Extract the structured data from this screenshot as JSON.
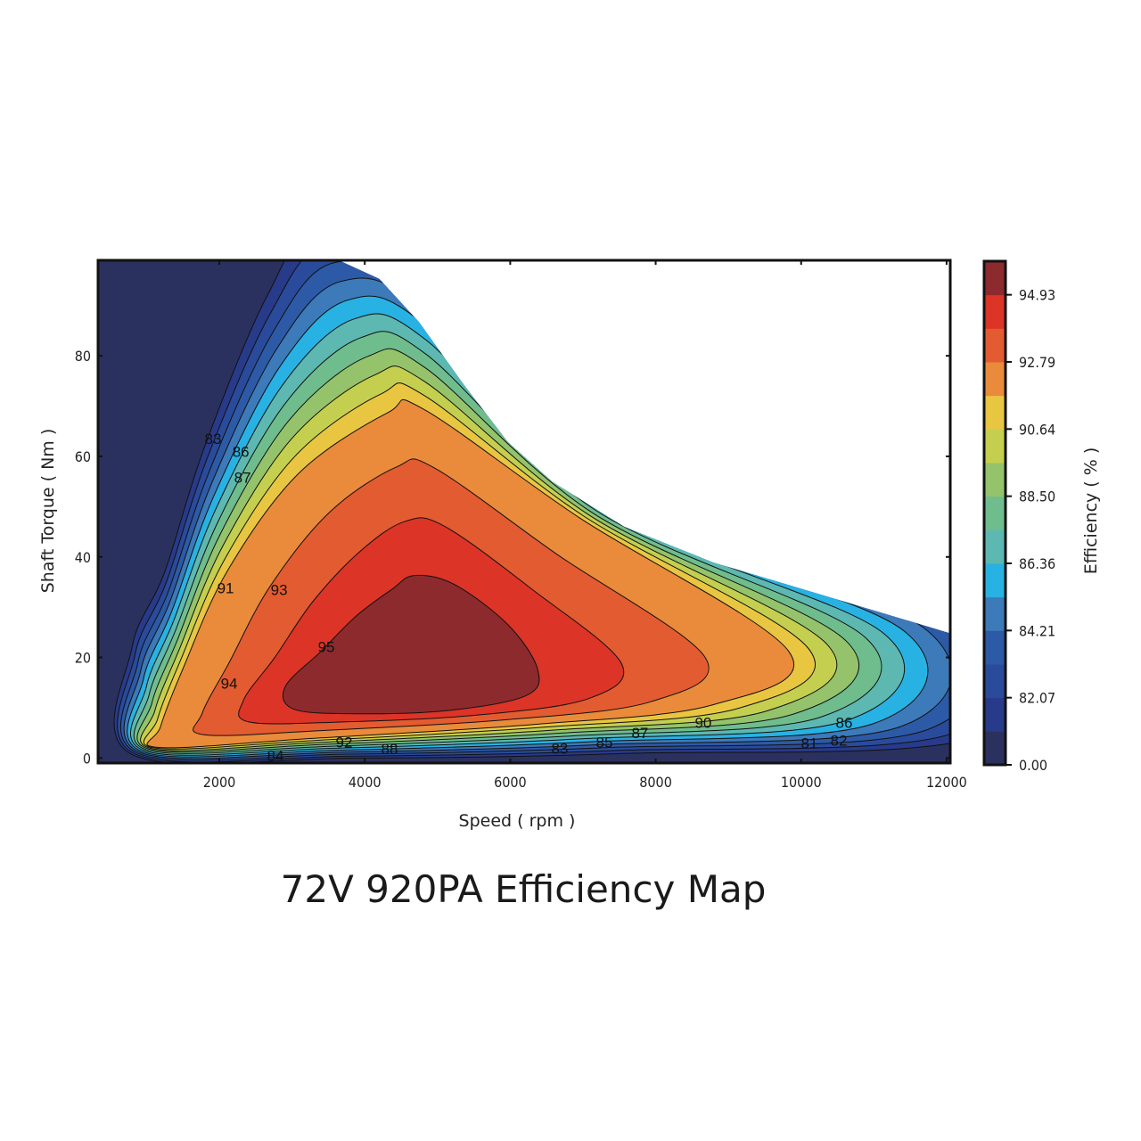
{
  "chart_data": {
    "type": "contour",
    "title": "72V 920PA Efficiency Map",
    "xlabel": "Speed ( rpm )",
    "ylabel": "Shaft Torque ( Nm )",
    "colorbar_label": "Efficiency ( % )",
    "xlim": [
      333,
      12050
    ],
    "ylim": [
      -1,
      99
    ],
    "xticks": [
      2000,
      4000,
      6000,
      8000,
      10000,
      12000
    ],
    "yticks": [
      0,
      20,
      40,
      60,
      80
    ],
    "colorbar_ticks": [
      "94.93",
      "92.79",
      "90.64",
      "88.50",
      "86.36",
      "84.21",
      "82.07",
      "0.00"
    ],
    "colorbar_tick_band_boundaries": [
      14,
      12,
      10,
      8,
      6,
      4,
      2,
      0
    ],
    "band_colors": [
      "#2b315e",
      "#283a8a",
      "#2a4b9c",
      "#2d5aa6",
      "#3c7ab9",
      "#28b2e3",
      "#5cb8b1",
      "#6fbd8d",
      "#94c36b",
      "#c4cf4f",
      "#e9c641",
      "#e98b3a",
      "#e35b30",
      "#dc3427",
      "#8d2a2e"
    ],
    "operating_envelope": [
      [
        333,
        99
      ],
      [
        3640,
        99
      ],
      [
        4200,
        95.3
      ],
      [
        4745,
        86.7
      ],
      [
        5358,
        74.3
      ],
      [
        5970,
        62.8
      ],
      [
        6583,
        54.9
      ],
      [
        7564,
        46
      ],
      [
        8789,
        38.9
      ],
      [
        10015,
        33.6
      ],
      [
        11240,
        28.3
      ],
      [
        12049,
        24.8
      ],
      [
        12049,
        -1
      ],
      [
        333,
        -1
      ]
    ],
    "key_contours": [
      {
        "band_boundary": 0,
        "points": [
          [
            800,
            0.7
          ],
          [
            800,
            22
          ],
          [
            1250,
            37
          ],
          [
            1800,
            62
          ],
          [
            2660,
            92
          ],
          [
            3400,
            106
          ],
          [
            4870,
            97
          ],
          [
            7560,
            51
          ],
          [
            12470,
            28
          ],
          [
            12470,
            4.4
          ],
          [
            7560,
            0.9
          ],
          [
            3890,
            0
          ]
        ]
      },
      {
        "band_boundary": 10,
        "points": [
          [
            1167,
            2.1
          ],
          [
            1191,
            6.2
          ],
          [
            1498,
            17.7
          ],
          [
            2110,
            37.2
          ],
          [
            3091,
            56.6
          ],
          [
            4316,
            68.7
          ],
          [
            4806,
            69.4
          ],
          [
            6951,
            47.8
          ],
          [
            9831,
            21.2
          ],
          [
            8789,
            10.6
          ],
          [
            6338,
            6.7
          ],
          [
            3275,
            3.9
          ]
        ]
      },
      {
        "band_boundary": 13,
        "points": [
          [
            3029,
            9.7
          ],
          [
            2907,
            14.2
          ],
          [
            3397,
            21.2
          ],
          [
            3887,
            28.3
          ],
          [
            4377,
            33.6
          ],
          [
            4684,
            36.3
          ],
          [
            5235,
            34.5
          ],
          [
            5970,
            26.5
          ],
          [
            6375,
            17.7
          ],
          [
            6216,
            12.4
          ],
          [
            5113,
            9.4
          ],
          [
            3887,
            8.8
          ]
        ]
      }
    ],
    "contour_labels": [
      {
        "text": "83",
        "x": 1914,
        "y": 63.5
      },
      {
        "text": "86",
        "x": 2296,
        "y": 61
      },
      {
        "text": "87",
        "x": 2320,
        "y": 55.8
      },
      {
        "text": "91",
        "x": 2086,
        "y": 33.8
      },
      {
        "text": "93",
        "x": 2822,
        "y": 33.5
      },
      {
        "text": "95",
        "x": 3471,
        "y": 22.1
      },
      {
        "text": "94",
        "x": 2135,
        "y": 14.9
      },
      {
        "text": "92",
        "x": 3716,
        "y": 3.2
      },
      {
        "text": "88",
        "x": 4341,
        "y": 1.8
      },
      {
        "text": "84",
        "x": 2772,
        "y": 0.5
      },
      {
        "text": "83",
        "x": 6681,
        "y": 1.9
      },
      {
        "text": "85",
        "x": 7294,
        "y": 3.2
      },
      {
        "text": "87",
        "x": 7784,
        "y": 5
      },
      {
        "text": "90",
        "x": 8654,
        "y": 7.1
      },
      {
        "text": "86",
        "x": 10591,
        "y": 7.1
      },
      {
        "text": "81",
        "x": 10113,
        "y": 3
      },
      {
        "text": "82",
        "x": 10518,
        "y": 3.5
      }
    ]
  }
}
